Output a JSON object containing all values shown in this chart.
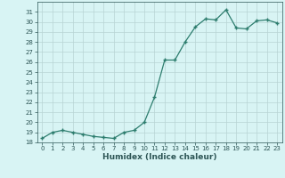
{
  "x": [
    0,
    1,
    2,
    3,
    4,
    5,
    6,
    7,
    8,
    9,
    10,
    11,
    12,
    13,
    14,
    15,
    16,
    17,
    18,
    19,
    20,
    21,
    22,
    23
  ],
  "y": [
    18.4,
    19.0,
    19.2,
    19.0,
    18.8,
    18.6,
    18.5,
    18.4,
    19.0,
    19.2,
    20.0,
    22.5,
    26.2,
    26.2,
    28.0,
    29.5,
    30.3,
    30.2,
    31.2,
    29.4,
    29.3,
    30.1,
    30.2,
    29.9
  ],
  "xlabel": "Humidex (Indice chaleur)",
  "ylim": [
    18,
    32
  ],
  "yticks": [
    18,
    19,
    20,
    21,
    22,
    23,
    24,
    25,
    26,
    27,
    28,
    29,
    30,
    31
  ],
  "xticks": [
    0,
    1,
    2,
    3,
    4,
    5,
    6,
    7,
    8,
    9,
    10,
    11,
    12,
    13,
    14,
    15,
    16,
    17,
    18,
    19,
    20,
    21,
    22,
    23
  ],
  "line_color": "#2d7d6e",
  "marker": "+",
  "bg_color": "#d8f4f4",
  "grid_color": "#b8d4d4",
  "tick_label_color": "#2d5555",
  "xlabel_color": "#2d5555"
}
